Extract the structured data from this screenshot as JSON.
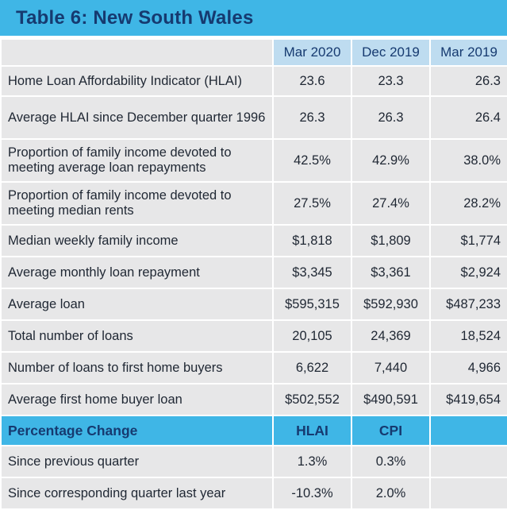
{
  "title": "Table 6: New South Wales",
  "columns": [
    "Mar 2020",
    "Dec 2019",
    "Mar 2019"
  ],
  "rows": [
    {
      "label": "Home Loan Affordability Indicator (HLAI)",
      "values": [
        "23.6",
        "23.3",
        "26.3"
      ]
    },
    {
      "label": "Average HLAI since December quarter 1996",
      "values": [
        "26.3",
        "26.3",
        "26.4"
      ]
    },
    {
      "label": "Proportion of family income devoted to meeting average loan repayments",
      "values": [
        "42.5%",
        "42.9%",
        "38.0%"
      ]
    },
    {
      "label": "Proportion of family income devoted to meeting median rents",
      "values": [
        "27.5%",
        "27.4%",
        "28.2%"
      ]
    },
    {
      "label": "Median weekly family income",
      "values": [
        "$1,818",
        "$1,809",
        "$1,774"
      ]
    },
    {
      "label": "Average monthly loan repayment",
      "values": [
        "$3,345",
        "$3,361",
        "$2,924"
      ]
    },
    {
      "label": "Average loan",
      "values": [
        "$595,315",
        "$592,930",
        "$487,233"
      ]
    },
    {
      "label": "Total number of loans",
      "values": [
        "20,105",
        "24,369",
        "18,524"
      ]
    },
    {
      "label": "Number of loans to first home buyers",
      "values": [
        "6,622",
        "7,440",
        "4,966"
      ]
    },
    {
      "label": "Average first home buyer loan",
      "values": [
        "$502,552",
        "$490,591",
        "$419,654"
      ]
    }
  ],
  "percentage_change": {
    "header": "Percentage Change",
    "columns": [
      "HLAI",
      "CPI"
    ],
    "rows": [
      {
        "label": "Since previous quarter",
        "values": [
          "1.3%",
          "0.3%"
        ]
      },
      {
        "label": "Since corresponding quarter last year",
        "values": [
          "-10.3%",
          "2.0%"
        ]
      }
    ]
  },
  "colors": {
    "accent": "#3fb6e6",
    "header_fill": "#bedcf0",
    "title_text": "#163a70",
    "body_bg": "#e7e7e8"
  }
}
